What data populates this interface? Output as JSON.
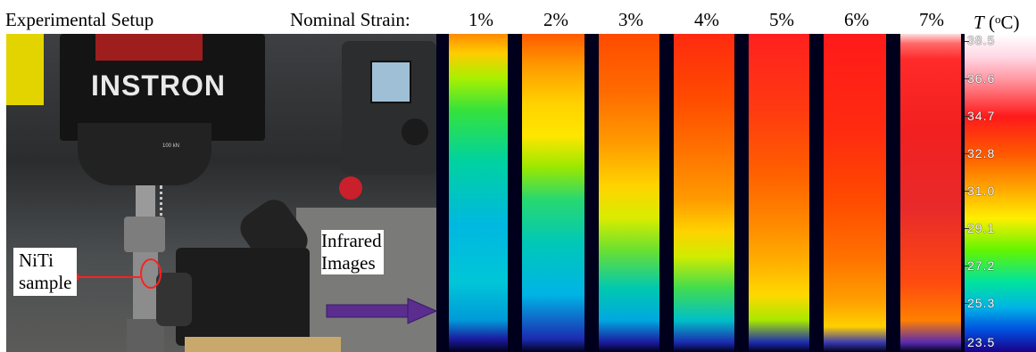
{
  "labels": {
    "setup_title": "Experimental Setup",
    "strain_title": "Nominal Strain:",
    "temp_symbol": "T",
    "temp_unit_open": " (",
    "temp_unit_sup": "o",
    "temp_unit_close": "C)",
    "niti_line1": "NiTi",
    "niti_line2": "sample",
    "infrared_line1": "Infrared",
    "infrared_line2": "Images"
  },
  "photo": {
    "brand_text": "INSTRON",
    "loadcell_text": "100 kN"
  },
  "strains": [
    "1%",
    "2%",
    "3%",
    "4%",
    "5%",
    "6%",
    "7%"
  ],
  "temperature_scale": [
    "38.5",
    "36.6",
    "34.7",
    "32.8",
    "31.0",
    "29.1",
    "27.2",
    "25.3",
    "23.5"
  ],
  "colors": {
    "arrow_purple": "#5b2d8e",
    "ring_red": "#ff2020",
    "ir_background": "#00001c"
  }
}
